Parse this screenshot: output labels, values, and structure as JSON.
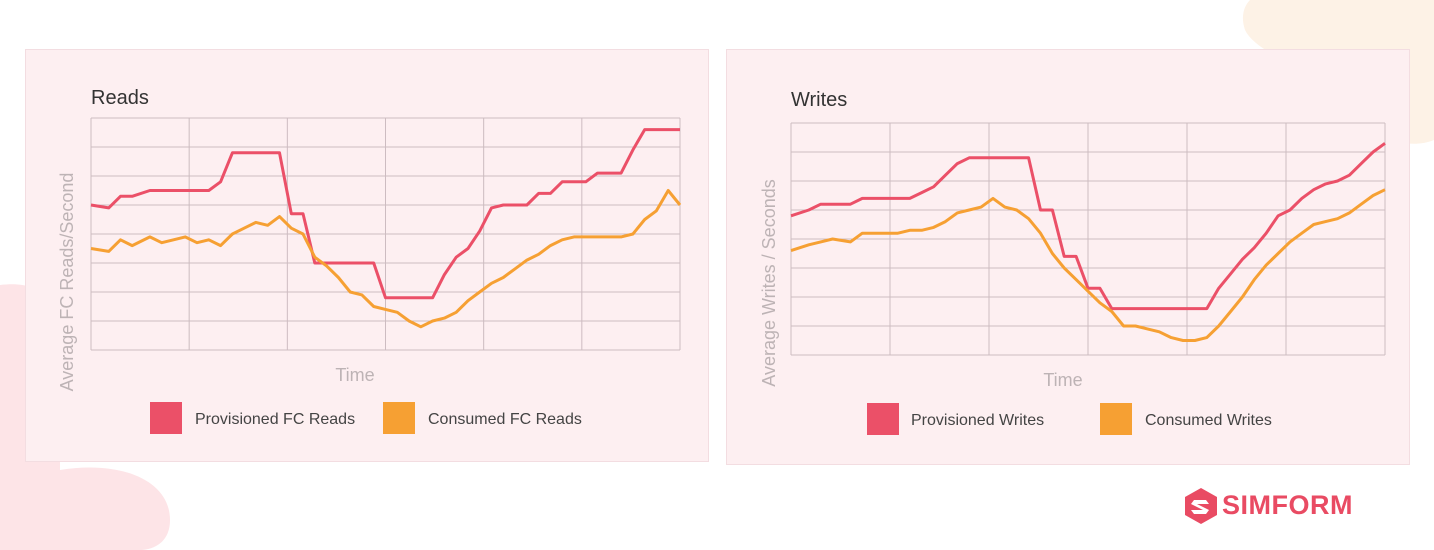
{
  "brand": {
    "name": "SIMFORM",
    "color": "#e94b63"
  },
  "colors": {
    "provisioned": "#eb5068",
    "consumed": "#f6a033",
    "grid": "#cdbcc1",
    "card": "#fdeff1"
  },
  "chart_data": [
    {
      "type": "line",
      "title": "Reads",
      "xlabel": "Time",
      "ylabel": "Average FC Reads/Second",
      "grid": true,
      "legend_position": "bottom",
      "x": [
        0,
        3,
        5,
        7,
        10,
        12,
        14,
        16,
        18,
        20,
        22,
        24,
        26,
        28,
        30,
        32,
        34,
        36,
        38,
        40,
        42,
        44,
        46,
        48,
        50,
        52,
        54,
        56,
        58,
        60,
        62,
        64,
        66,
        68,
        70,
        72,
        74,
        76,
        78,
        80,
        82,
        84,
        86,
        88,
        90,
        92,
        94,
        96,
        98,
        100
      ],
      "series": [
        {
          "name": "Provisioned FC Reads",
          "color": "#eb5068",
          "values": [
            5.0,
            4.9,
            5.3,
            5.3,
            5.5,
            5.5,
            5.5,
            5.5,
            5.5,
            5.5,
            5.8,
            6.8,
            6.8,
            6.8,
            6.8,
            6.8,
            4.7,
            4.7,
            3.0,
            3.0,
            3.0,
            3.0,
            3.0,
            3.0,
            1.8,
            1.8,
            1.8,
            1.8,
            1.8,
            2.6,
            3.2,
            3.5,
            4.1,
            4.9,
            5.0,
            5.0,
            5.0,
            5.4,
            5.4,
            5.8,
            5.8,
            5.8,
            6.1,
            6.1,
            6.1,
            6.9,
            7.6,
            7.6,
            7.6,
            7.6
          ]
        },
        {
          "name": "Consumed FC Reads",
          "color": "#f6a033",
          "values": [
            3.5,
            3.4,
            3.8,
            3.6,
            3.9,
            3.7,
            3.8,
            3.9,
            3.7,
            3.8,
            3.6,
            4.0,
            4.2,
            4.4,
            4.3,
            4.6,
            4.2,
            4.0,
            3.2,
            2.9,
            2.5,
            2.0,
            1.9,
            1.5,
            1.4,
            1.3,
            1.0,
            0.8,
            1.0,
            1.1,
            1.3,
            1.7,
            2.0,
            2.3,
            2.5,
            2.8,
            3.1,
            3.3,
            3.6,
            3.8,
            3.9,
            3.9,
            3.9,
            3.9,
            3.9,
            4.0,
            4.5,
            4.8,
            5.5,
            5.0
          ]
        }
      ],
      "ylim": [
        0,
        8
      ],
      "xlim": [
        0,
        100
      ]
    },
    {
      "type": "line",
      "title": "Writes",
      "xlabel": "Time",
      "ylabel": "Average Writes / Seconds",
      "grid": true,
      "legend_position": "bottom",
      "x": [
        0,
        3,
        5,
        7,
        10,
        12,
        14,
        16,
        18,
        20,
        22,
        24,
        26,
        28,
        30,
        32,
        34,
        36,
        38,
        40,
        42,
        44,
        46,
        48,
        50,
        52,
        54,
        56,
        58,
        60,
        62,
        64,
        66,
        68,
        70,
        72,
        74,
        76,
        78,
        80,
        82,
        84,
        86,
        88,
        90,
        92,
        94,
        96,
        98,
        100
      ],
      "series": [
        {
          "name": "Provisioned Writes",
          "color": "#eb5068",
          "values": [
            4.8,
            5.0,
            5.2,
            5.2,
            5.2,
            5.4,
            5.4,
            5.4,
            5.4,
            5.4,
            5.6,
            5.8,
            6.2,
            6.6,
            6.8,
            6.8,
            6.8,
            6.8,
            6.8,
            6.8,
            5.0,
            5.0,
            3.4,
            3.4,
            2.3,
            2.3,
            1.6,
            1.6,
            1.6,
            1.6,
            1.6,
            1.6,
            1.6,
            1.6,
            1.6,
            2.3,
            2.8,
            3.3,
            3.7,
            4.2,
            4.8,
            5.0,
            5.4,
            5.7,
            5.9,
            6.0,
            6.2,
            6.6,
            7.0,
            7.3
          ]
        },
        {
          "name": "Consumed Writes",
          "color": "#f6a033",
          "values": [
            3.6,
            3.8,
            3.9,
            4.0,
            3.9,
            4.2,
            4.2,
            4.2,
            4.2,
            4.3,
            4.3,
            4.4,
            4.6,
            4.9,
            5.0,
            5.1,
            5.4,
            5.1,
            5.0,
            4.7,
            4.2,
            3.5,
            3.0,
            2.6,
            2.2,
            1.8,
            1.5,
            1.0,
            1.0,
            0.9,
            0.8,
            0.6,
            0.5,
            0.5,
            0.6,
            1.0,
            1.5,
            2.0,
            2.6,
            3.1,
            3.5,
            3.9,
            4.2,
            4.5,
            4.6,
            4.7,
            4.9,
            5.2,
            5.5,
            5.7
          ]
        }
      ],
      "ylim": [
        0,
        8
      ],
      "xlim": [
        0,
        100
      ]
    }
  ]
}
